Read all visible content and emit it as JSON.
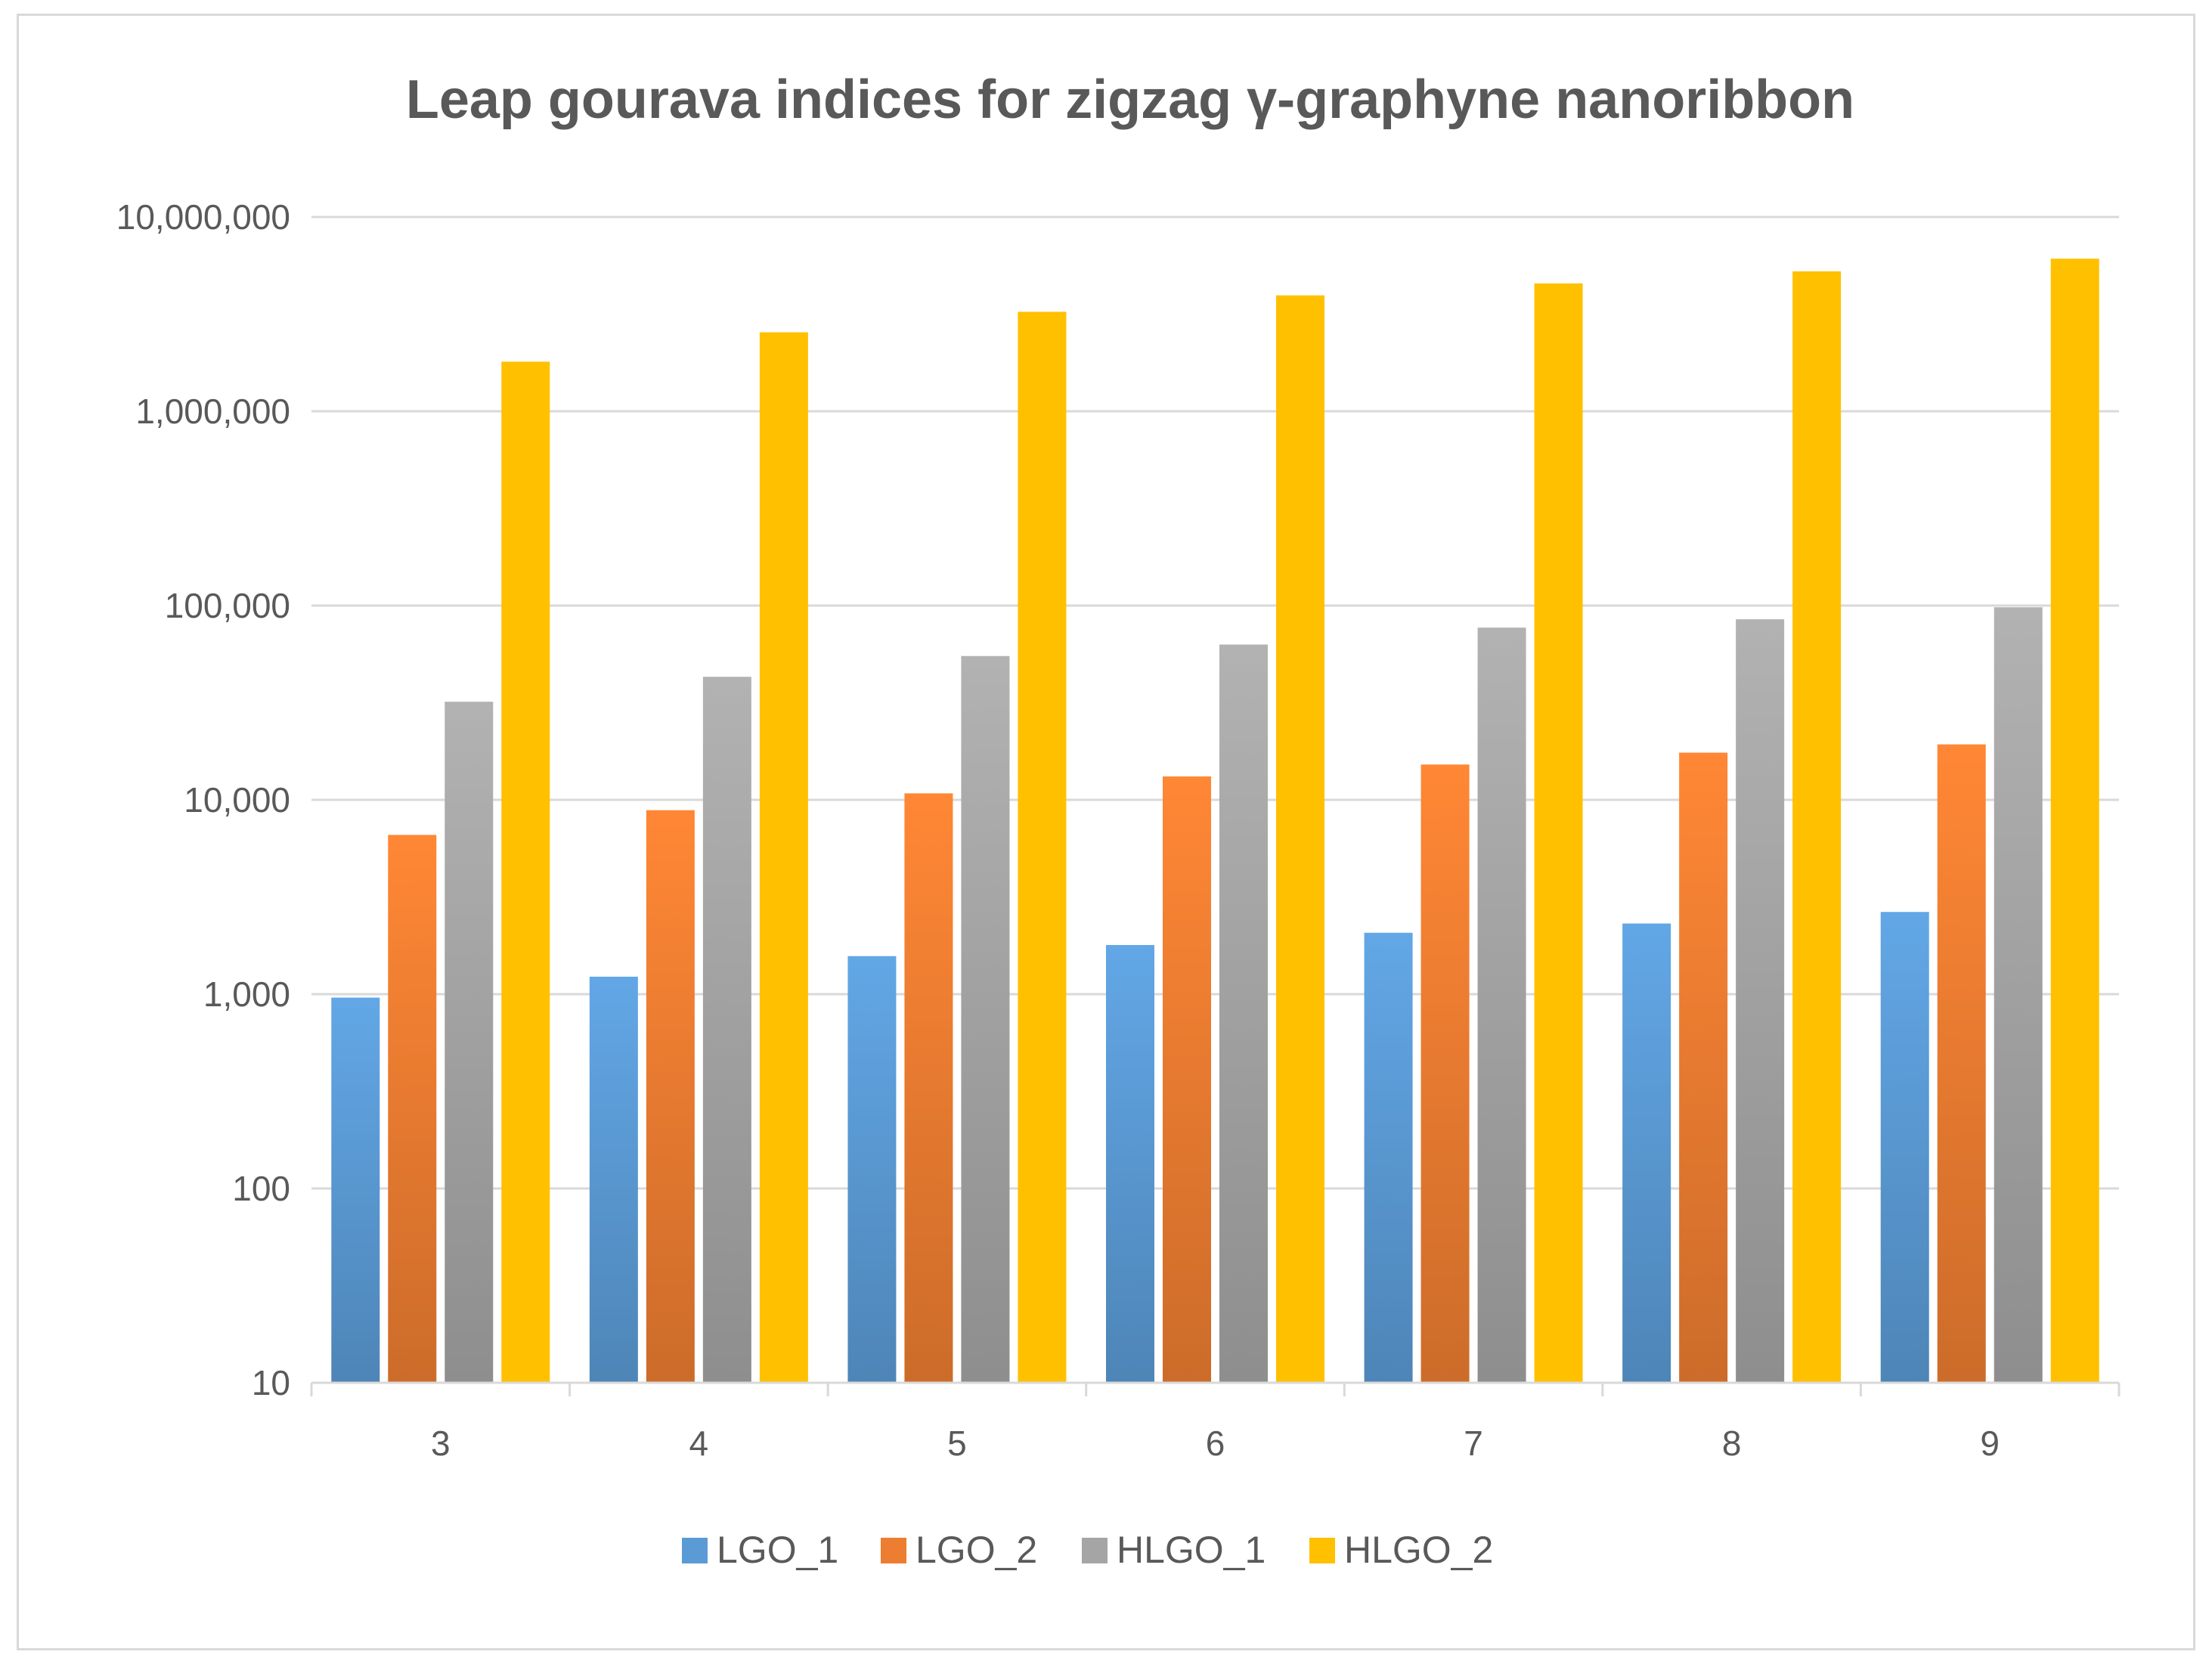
{
  "chart_data": {
    "type": "bar",
    "title": "Leap gourava indices for zigzag γ-graphyne nanoribbon",
    "xlabel": "",
    "ylabel": "",
    "yscale": "log",
    "ylim": [
      10,
      10000000
    ],
    "yticks": [
      10,
      100,
      1000,
      10000,
      100000,
      1000000,
      10000000
    ],
    "ytick_labels": [
      "10",
      "100",
      "1,000",
      "10,000",
      "100,000",
      "1,000,000",
      "10,000,000"
    ],
    "categories": [
      "3",
      "4",
      "5",
      "6",
      "7",
      "8",
      "9"
    ],
    "grid": true,
    "legend_position": "bottom",
    "series": [
      {
        "name": "LGO_1",
        "color": "#5b9bd5",
        "values": [
          960,
          1230,
          1570,
          1790,
          2070,
          2310,
          2650
        ]
      },
      {
        "name": "LGO_2",
        "color": "#ed7d31",
        "values": [
          6600,
          8850,
          10800,
          13200,
          15200,
          17500,
          19300
        ]
      },
      {
        "name": "HLGO_1",
        "color": "#a5a5a5",
        "values": [
          32000,
          43000,
          55000,
          63000,
          77000,
          85000,
          98000
        ]
      },
      {
        "name": "HLGO_2",
        "color": "#ffc000",
        "values": [
          1800000,
          2550000,
          3250000,
          3950000,
          4550000,
          5250000,
          6100000
        ]
      }
    ]
  }
}
